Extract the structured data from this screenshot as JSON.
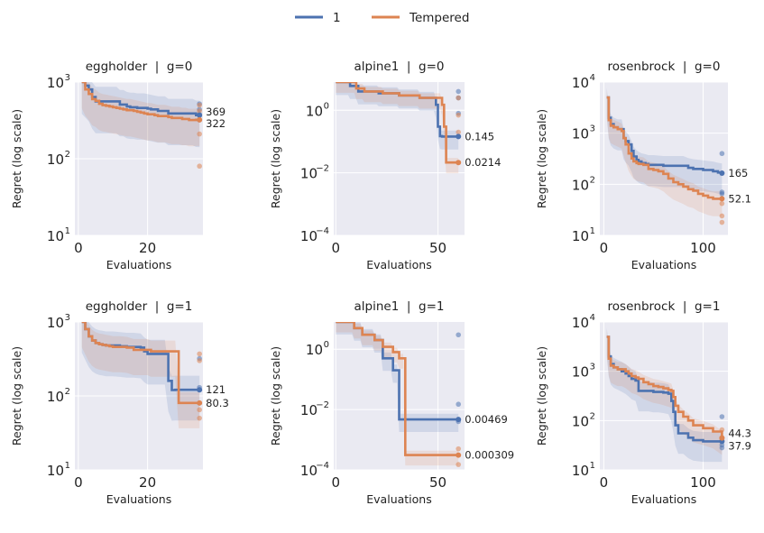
{
  "legend": [
    {
      "label": "1",
      "color": "#4c72b0"
    },
    {
      "label": "Tempered",
      "color": "#dd8452"
    }
  ],
  "colors": {
    "panel_bg": "#eaeaf2",
    "grid": "#ffffff",
    "text": "#222222"
  },
  "chart_data": [
    {
      "type": "line",
      "title": "eggholder  |  g=0",
      "xlabel": "Evaluations",
      "ylabel": "Regret (log scale)",
      "xlim": [
        -1,
        36
      ],
      "ylim": [
        10,
        1000
      ],
      "yscale": "log",
      "xticks": [
        0,
        20
      ],
      "xtick_labels": [
        "0",
        "20"
      ],
      "yticks": [
        10,
        100,
        1000
      ],
      "ytick_labels": [
        [
          "10",
          "1"
        ],
        [
          "10",
          "2"
        ],
        [
          "10",
          "3"
        ]
      ],
      "series": [
        {
          "name": "1",
          "x": [
            1,
            2,
            3,
            4,
            5,
            7,
            10,
            11,
            12,
            13,
            14,
            15,
            16,
            17,
            18,
            19,
            20,
            21,
            23,
            24,
            25,
            26,
            27,
            28,
            29,
            30,
            31,
            32,
            33,
            34,
            35
          ],
          "y": [
            1000,
            900,
            800,
            640,
            560,
            560,
            560,
            560,
            510,
            510,
            480,
            470,
            470,
            460,
            460,
            460,
            450,
            440,
            420,
            420,
            420,
            390,
            390,
            390,
            390,
            390,
            390,
            390,
            390,
            370,
            369
          ],
          "end_label": "369",
          "final_points": [
            520,
            440,
            380,
            320
          ]
        },
        {
          "name": "Tempered",
          "x": [
            1,
            2,
            3,
            4,
            5,
            6,
            7,
            8,
            9,
            10,
            11,
            12,
            13,
            14,
            15,
            16,
            17,
            18,
            19,
            20,
            21,
            22,
            23,
            24,
            25,
            26,
            27,
            28,
            29,
            30,
            31,
            32,
            33,
            34,
            35
          ],
          "y": [
            1000,
            800,
            700,
            600,
            570,
            520,
            500,
            490,
            480,
            470,
            460,
            450,
            440,
            430,
            430,
            420,
            410,
            400,
            390,
            380,
            380,
            370,
            360,
            360,
            360,
            350,
            340,
            340,
            340,
            330,
            330,
            320,
            320,
            322,
            322
          ],
          "end_label": "322",
          "final_points": [
            500,
            420,
            210,
            80
          ]
        }
      ]
    },
    {
      "type": "line",
      "title": "alpine1  |  g=0",
      "xlabel": "Evaluations",
      "ylabel": "Regret (log scale)",
      "xlim": [
        -1,
        63
      ],
      "ylim": [
        0.0001,
        8
      ],
      "yscale": "log",
      "xticks": [
        0,
        50
      ],
      "xtick_labels": [
        "0",
        "50"
      ],
      "yticks": [
        0.0001,
        0.01,
        1
      ],
      "ytick_labels": [
        [
          "10",
          "−4"
        ],
        [
          "10",
          "−2"
        ],
        [
          "10",
          "0"
        ]
      ],
      "series": [
        {
          "name": "1",
          "x": [
            0,
            6,
            7,
            10,
            11,
            20,
            21,
            30,
            31,
            40,
            41,
            48,
            49,
            50,
            51,
            52,
            53,
            54,
            55,
            57,
            60
          ],
          "y": [
            8,
            8,
            6,
            6,
            4,
            4,
            3.5,
            3.5,
            3,
            3,
            2.5,
            2.5,
            1.5,
            0.3,
            0.15,
            0.145,
            0.145,
            0.145,
            0.145,
            0.145,
            0.145
          ],
          "end_label": "0.145",
          "final_points": [
            4,
            2.5,
            0.8
          ]
        },
        {
          "name": "Tempered",
          "x": [
            0,
            9,
            10,
            13,
            14,
            22,
            23,
            30,
            31,
            40,
            41,
            51,
            52,
            53,
            54,
            55,
            60
          ],
          "y": [
            8,
            8,
            5,
            5,
            4,
            4,
            3.5,
            3.5,
            3,
            3,
            2.5,
            2.5,
            1.5,
            0.3,
            0.0214,
            0.0214,
            0.0214
          ],
          "end_label": "0.0214",
          "final_points": [
            2.5,
            0.7,
            0.2
          ]
        }
      ]
    },
    {
      "type": "line",
      "title": "rosenbrock  |  g=0",
      "xlabel": "Evaluations",
      "ylabel": "Regret (log scale)",
      "xlim": [
        -4,
        125
      ],
      "ylim": [
        10,
        10000
      ],
      "yscale": "log",
      "xticks": [
        0,
        100
      ],
      "xtick_labels": [
        "0",
        "100"
      ],
      "yticks": [
        10,
        100,
        1000,
        10000
      ],
      "ytick_labels": [
        [
          "10",
          "1"
        ],
        [
          "10",
          "2"
        ],
        [
          "10",
          "3"
        ],
        [
          "10",
          "4"
        ]
      ],
      "series": [
        {
          "name": "1",
          "x": [
            3,
            5,
            7,
            10,
            14,
            18,
            20,
            22,
            25,
            28,
            30,
            33,
            35,
            38,
            42,
            45,
            50,
            60,
            70,
            80,
            85,
            90,
            100,
            110,
            115,
            119
          ],
          "y": [
            5000,
            2000,
            1500,
            1300,
            1200,
            1200,
            800,
            700,
            600,
            450,
            350,
            300,
            280,
            260,
            250,
            240,
            240,
            230,
            230,
            230,
            210,
            200,
            190,
            180,
            170,
            165
          ],
          "end_label": "165",
          "final_points": [
            400,
            70,
            65
          ]
        },
        {
          "name": "Tempered",
          "x": [
            3,
            5,
            7,
            10,
            14,
            18,
            20,
            22,
            25,
            28,
            30,
            33,
            35,
            40,
            45,
            50,
            55,
            60,
            65,
            70,
            75,
            80,
            85,
            90,
            95,
            100,
            105,
            110,
            115,
            119
          ],
          "y": [
            5000,
            1800,
            1400,
            1300,
            1200,
            1100,
            800,
            600,
            400,
            320,
            280,
            260,
            250,
            240,
            200,
            190,
            180,
            160,
            130,
            110,
            100,
            90,
            80,
            75,
            65,
            60,
            55,
            52,
            52,
            52.1
          ],
          "end_label": "52.1",
          "final_points": [
            42,
            24,
            18
          ]
        }
      ]
    },
    {
      "type": "line",
      "title": "eggholder  |  g=1",
      "xlabel": "Evaluations",
      "ylabel": "Regret (log scale)",
      "xlim": [
        -1,
        36
      ],
      "ylim": [
        10,
        1000
      ],
      "yscale": "log",
      "xticks": [
        0,
        20
      ],
      "xtick_labels": [
        "0",
        "20"
      ],
      "yticks": [
        10,
        100,
        1000
      ],
      "ytick_labels": [
        [
          "10",
          "1"
        ],
        [
          "10",
          "2"
        ],
        [
          "10",
          "3"
        ]
      ],
      "series": [
        {
          "name": "1",
          "x": [
            1,
            2,
            3,
            4,
            5,
            6,
            7,
            8,
            9,
            10,
            12,
            14,
            16,
            18,
            19,
            20,
            21,
            22,
            24,
            25,
            26,
            27,
            28,
            29,
            30,
            31,
            32,
            33,
            34,
            35
          ],
          "y": [
            1000,
            800,
            640,
            560,
            520,
            500,
            490,
            480,
            480,
            480,
            470,
            460,
            460,
            450,
            400,
            370,
            370,
            370,
            370,
            370,
            160,
            120,
            121,
            121,
            121,
            121,
            121,
            121,
            121,
            121
          ],
          "end_label": "121",
          "final_points": [
            320,
            130,
            80
          ]
        },
        {
          "name": "Tempered",
          "x": [
            1,
            2,
            3,
            4,
            5,
            6,
            7,
            8,
            9,
            10,
            12,
            14,
            16,
            18,
            20,
            21,
            22,
            24,
            25,
            26,
            27,
            28,
            29,
            30,
            31,
            32,
            33,
            34,
            35
          ],
          "y": [
            1000,
            800,
            640,
            560,
            520,
            500,
            490,
            480,
            470,
            460,
            460,
            450,
            420,
            420,
            420,
            400,
            400,
            400,
            400,
            400,
            400,
            400,
            80.3,
            80.3,
            80.3,
            80.3,
            80.3,
            80.3,
            80.3
          ],
          "end_label": "80.3",
          "final_points": [
            370,
            300,
            65,
            50
          ]
        }
      ]
    },
    {
      "type": "line",
      "title": "alpine1  |  g=1",
      "xlabel": "Evaluations",
      "ylabel": "Regret (log scale)",
      "xlim": [
        -1,
        63
      ],
      "ylim": [
        0.0001,
        8
      ],
      "yscale": "log",
      "xticks": [
        0,
        50
      ],
      "xtick_labels": [
        "0",
        "50"
      ],
      "yticks": [
        0.0001,
        0.01,
        1
      ],
      "ytick_labels": [
        [
          "10",
          "−4"
        ],
        [
          "10",
          "−2"
        ],
        [
          "10",
          "0"
        ]
      ],
      "series": [
        {
          "name": "1",
          "x": [
            0,
            8,
            9,
            12,
            13,
            18,
            19,
            22,
            23,
            27,
            28,
            30,
            31,
            33,
            34,
            50,
            60
          ],
          "y": [
            8,
            8,
            5,
            5,
            3,
            3,
            2,
            2,
            0.5,
            0.5,
            0.2,
            0.2,
            0.00469,
            0.00469,
            0.00469,
            0.00469,
            0.00469
          ],
          "end_label": "0.00469",
          "final_points": [
            3,
            0.015,
            0.004
          ]
        },
        {
          "name": "Tempered",
          "x": [
            0,
            8,
            9,
            12,
            13,
            18,
            19,
            22,
            23,
            27,
            28,
            30,
            31,
            33,
            34,
            40,
            50,
            60
          ],
          "y": [
            8,
            8,
            5,
            5,
            3,
            3,
            2,
            2,
            1.2,
            1.2,
            0.8,
            0.8,
            0.5,
            0.5,
            0.000309,
            0.000309,
            0.000309,
            0.000309
          ],
          "end_label": "0.000309",
          "final_points": [
            0.0005,
            0.00015
          ]
        }
      ]
    },
    {
      "type": "line",
      "title": "rosenbrock  |  g=1",
      "xlabel": "Evaluations",
      "ylabel": "Regret (log scale)",
      "xlim": [
        -4,
        125
      ],
      "ylim": [
        10,
        10000
      ],
      "yscale": "log",
      "xticks": [
        0,
        100
      ],
      "xtick_labels": [
        "0",
        "100"
      ],
      "yticks": [
        10,
        100,
        1000,
        10000
      ],
      "ytick_labels": [
        [
          "10",
          "1"
        ],
        [
          "10",
          "2"
        ],
        [
          "10",
          "3"
        ],
        [
          "10",
          "4"
        ]
      ],
      "series": [
        {
          "name": "1",
          "x": [
            3,
            5,
            7,
            10,
            14,
            18,
            22,
            25,
            28,
            32,
            35,
            40,
            45,
            50,
            55,
            60,
            65,
            68,
            70,
            72,
            75,
            80,
            85,
            90,
            100,
            110,
            119
          ],
          "y": [
            5000,
            2000,
            1400,
            1200,
            1100,
            1000,
            900,
            800,
            700,
            650,
            400,
            400,
            400,
            380,
            380,
            370,
            350,
            250,
            150,
            80,
            55,
            55,
            45,
            40,
            37.9,
            37.9,
            37.9
          ],
          "end_label": "37.9",
          "final_points": [
            120,
            32,
            28
          ]
        },
        {
          "name": "Tempered",
          "x": [
            3,
            5,
            7,
            10,
            14,
            18,
            22,
            25,
            28,
            32,
            35,
            40,
            45,
            50,
            55,
            60,
            65,
            68,
            70,
            72,
            75,
            80,
            85,
            90,
            100,
            110,
            119
          ],
          "y": [
            5000,
            1800,
            1300,
            1200,
            1100,
            1100,
            1000,
            900,
            800,
            750,
            700,
            600,
            550,
            500,
            480,
            450,
            420,
            400,
            300,
            200,
            150,
            120,
            100,
            80,
            70,
            60,
            44.3
          ],
          "end_label": "44.3",
          "final_points": [
            65,
            45,
            40
          ]
        }
      ]
    }
  ]
}
